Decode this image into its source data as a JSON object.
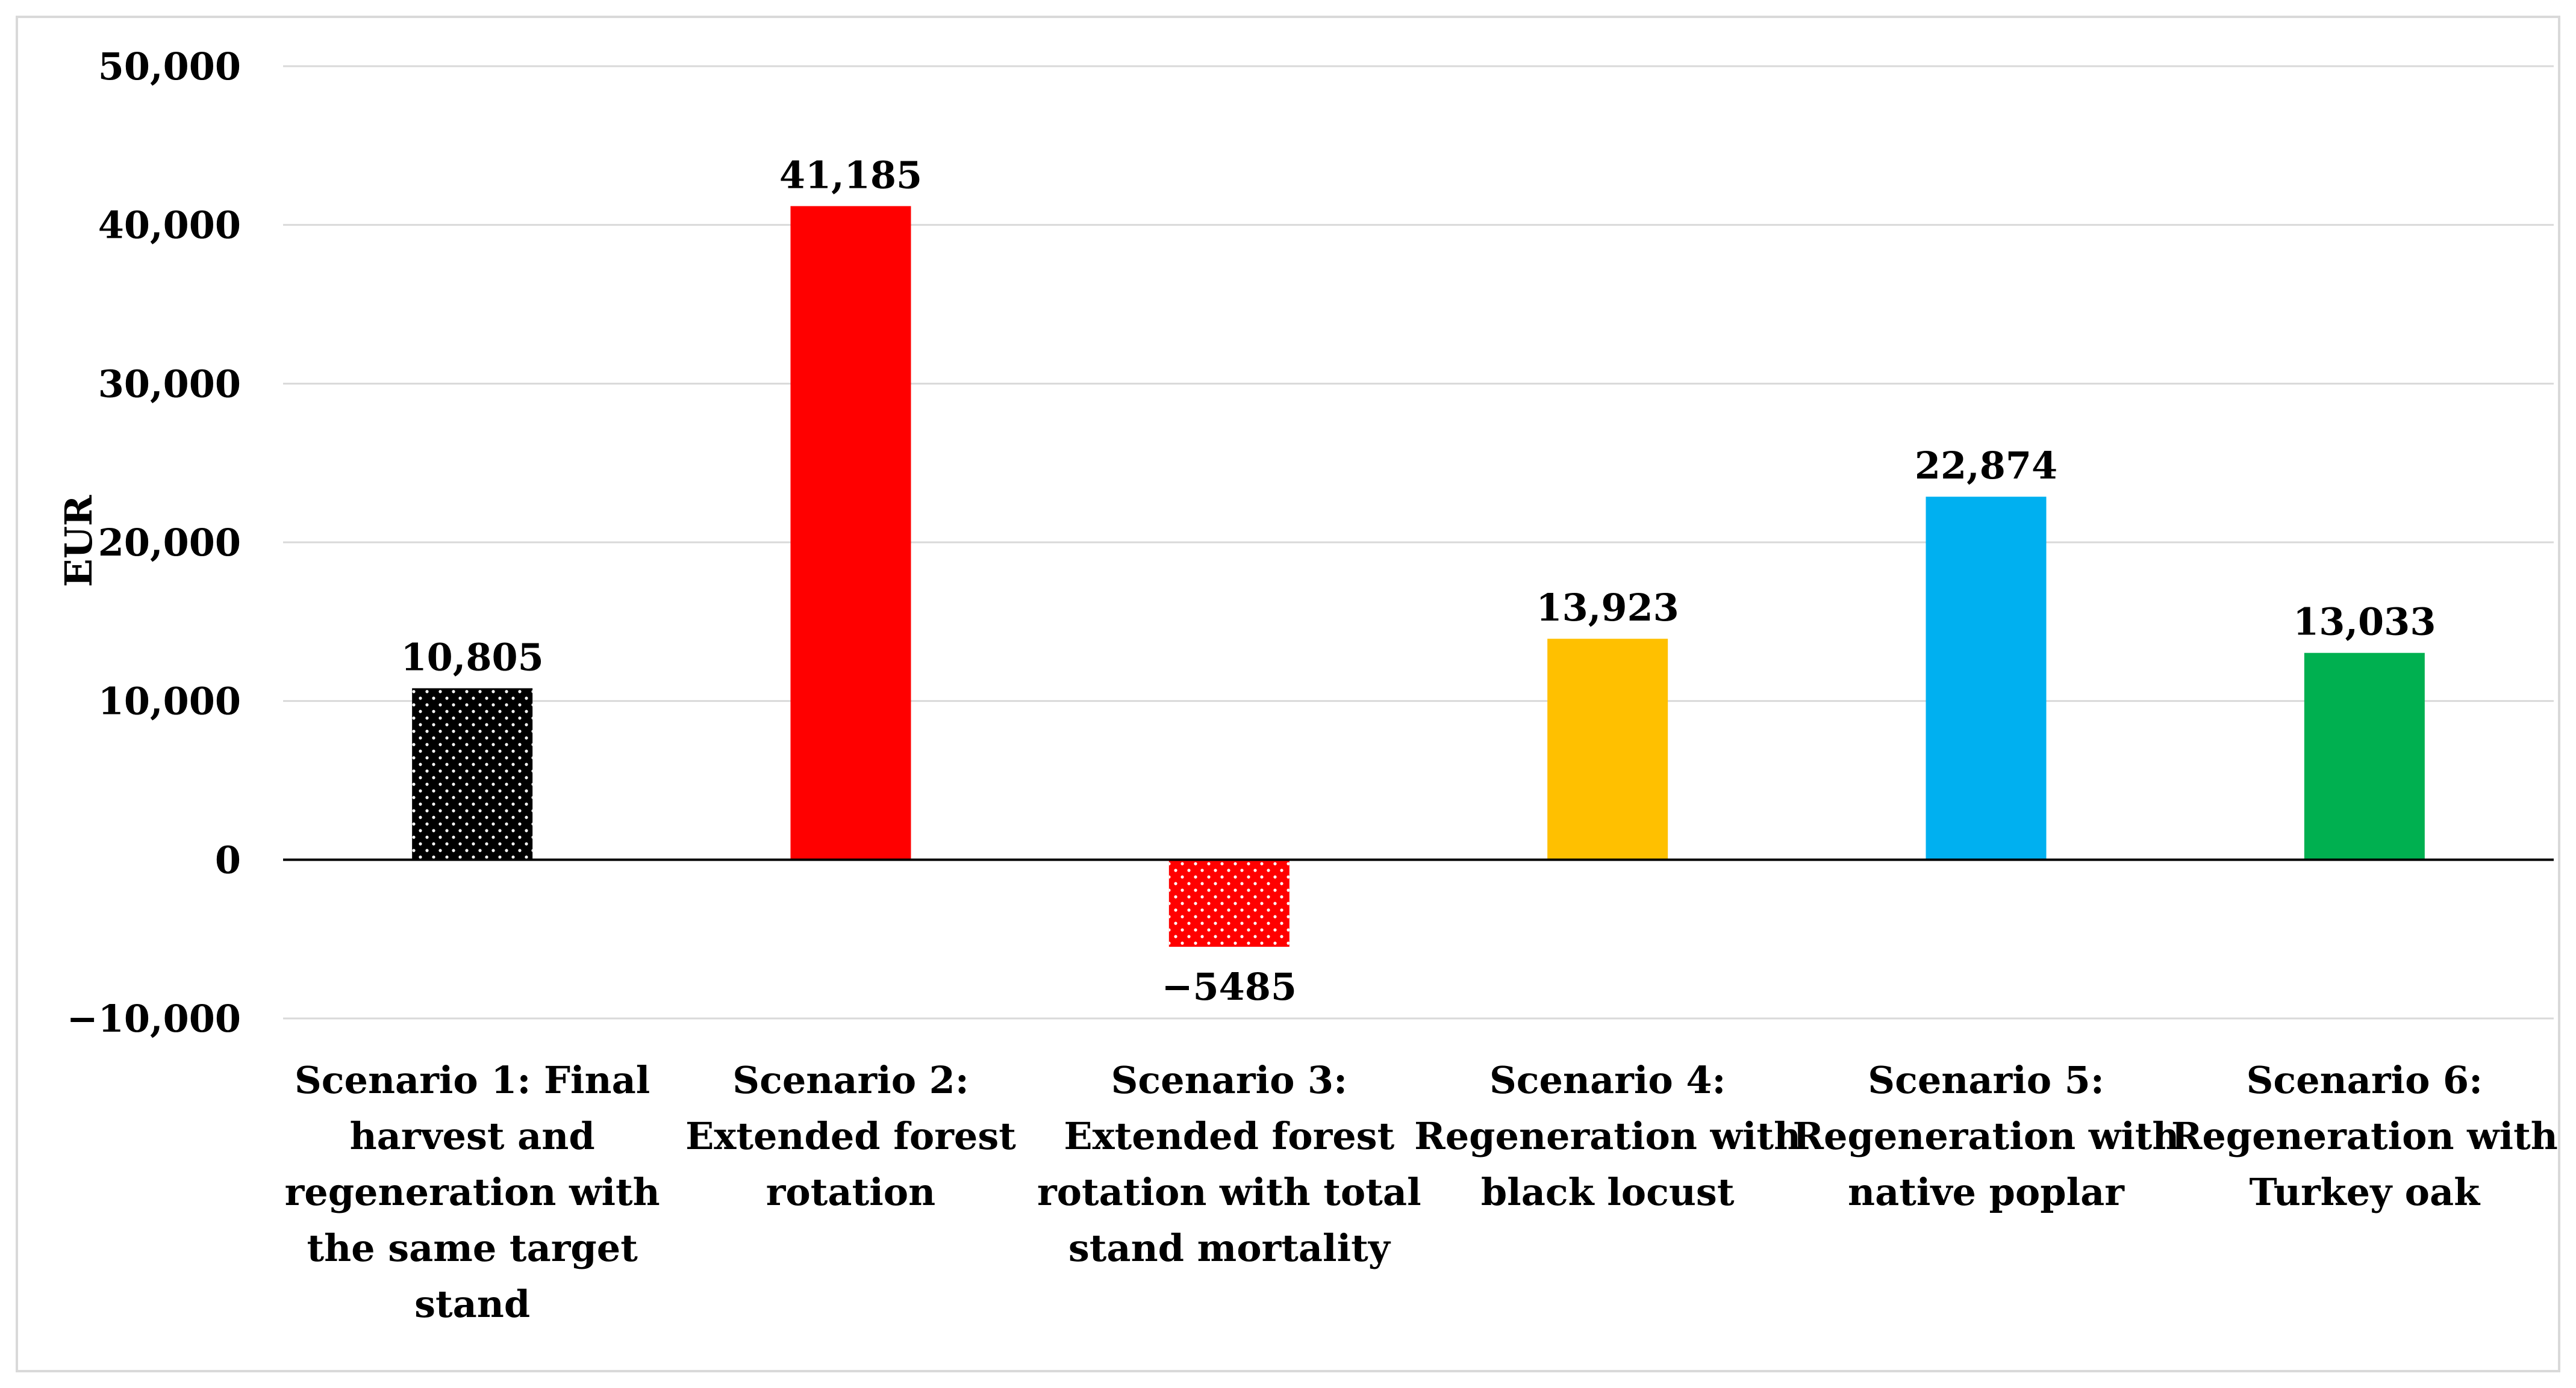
{
  "chart_data": {
    "type": "bar",
    "title": "",
    "xlabel": "",
    "ylabel": "EUR",
    "ylim": [
      -10000,
      50000
    ],
    "yticks": [
      -10000,
      0,
      10000,
      20000,
      30000,
      40000,
      50000
    ],
    "ytick_labels": [
      "−10,000",
      "0",
      "10,000",
      "20,000",
      "30,000",
      "40,000",
      "50,000"
    ],
    "grid": true,
    "legend": "none",
    "categories": [
      [
        "Scenario 1: Final",
        "harvest and",
        "regeneration with",
        "the same target",
        "stand"
      ],
      [
        "Scenario 2:",
        "Extended forest",
        "rotation"
      ],
      [
        "Scenario 3:",
        "Extended forest",
        "rotation with total",
        "stand mortality"
      ],
      [
        "Scenario 4:",
        "Regeneration with",
        "black locust"
      ],
      [
        "Scenario 5:",
        "Regeneration with",
        "native poplar"
      ],
      [
        "Scenario 6:",
        "Regeneration with",
        "Turkey oak"
      ]
    ],
    "values": [
      10805,
      41185,
      -5485,
      13923,
      22874,
      13033
    ],
    "data_labels": [
      "10,805",
      "41,185",
      "−5485",
      "13,923",
      "22,874",
      "13,033"
    ],
    "colors": [
      "#000000",
      "#ff0000",
      "#ff0000",
      "#ffc000",
      "#00b0f0",
      "#00b050"
    ],
    "patterns": [
      "dots-white",
      "none",
      "dots-white",
      "none",
      "none",
      "none"
    ]
  }
}
